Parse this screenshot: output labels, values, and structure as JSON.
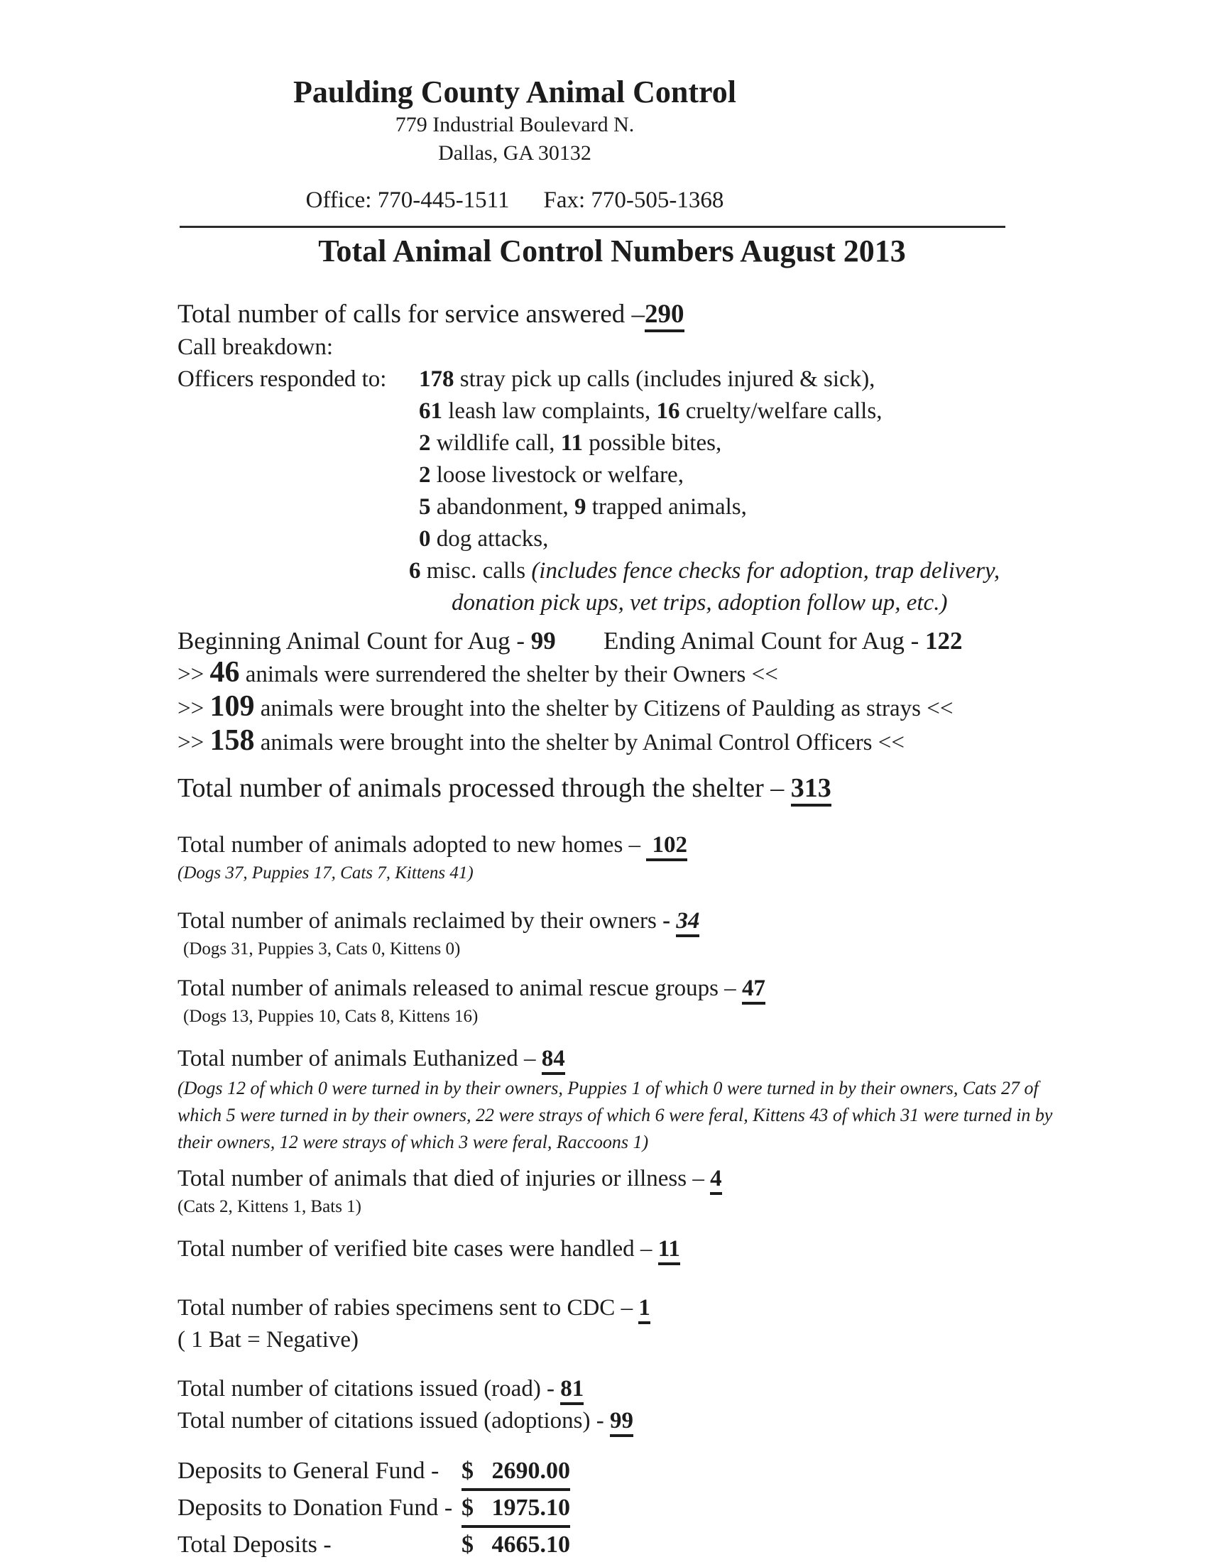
{
  "colors": {
    "text": "#1c1c1c",
    "underline": "#1c1c1c",
    "divider": "#2b2b2b",
    "background": "#ffffff"
  },
  "header": {
    "org_name": "Paulding County Animal Control",
    "address1": "779 Industrial Boulevard N.",
    "address2": "Dallas, GA 30132",
    "office": "Office: 770-445-1511",
    "fax": "Fax: 770-505-1368"
  },
  "doc_title": "Total Animal Control Numbers August 2013",
  "calls": {
    "total": [
      {
        "t": "Total number of calls for service answered –"
      },
      {
        "t": "290",
        "c": "b u"
      }
    ],
    "breakdown_label": "Call breakdown:",
    "officers_label": "Officers responded to:",
    "lines": [
      [
        {
          "t": "178",
          "c": "b"
        },
        {
          "t": " stray pick up calls (includes injured & sick),"
        }
      ],
      [
        {
          "t": "61",
          "c": "b"
        },
        {
          "t": " leash law complaints, "
        },
        {
          "t": "16",
          "c": "b"
        },
        {
          "t": " cruelty/welfare calls,"
        }
      ],
      [
        {
          "t": "2",
          "c": "b"
        },
        {
          "t": " wildlife call, "
        },
        {
          "t": "11",
          "c": "b"
        },
        {
          "t": " possible bites,"
        }
      ],
      [
        {
          "t": "2",
          "c": "b"
        },
        {
          "t": " loose livestock or welfare,"
        }
      ],
      [
        {
          "t": "5",
          "c": "b"
        },
        {
          "t": " abandonment, "
        },
        {
          "t": "9",
          "c": "b"
        },
        {
          "t": " trapped animals,"
        }
      ],
      [
        {
          "t": "0",
          "c": "b"
        },
        {
          "t": " dog attacks,"
        }
      ],
      [
        {
          "t": "6",
          "c": "b"
        },
        {
          "t": " misc. calls "
        },
        {
          "t": "(includes fence checks for adoption, trap delivery,",
          "c": "i"
        }
      ],
      [
        {
          "t": "donation pick ups, vet trips, adoption follow up, etc.)",
          "c": "i"
        }
      ]
    ]
  },
  "counts": {
    "beginning": [
      {
        "t": "Beginning Animal Count for Aug - "
      },
      {
        "t": "99",
        "c": "b"
      }
    ],
    "ending": [
      {
        "t": "Ending Animal Count for Aug - "
      },
      {
        "t": "122",
        "c": "b"
      }
    ]
  },
  "intake": [
    [
      {
        "t": ">> "
      },
      {
        "t": "46",
        "c": "b bignum"
      },
      {
        "t": " animals were surrendered the shelter by their Owners <<"
      }
    ],
    [
      {
        "t": ">> "
      },
      {
        "t": "109",
        "c": "b bignum"
      },
      {
        "t": " animals were brought into the shelter by Citizens of Paulding as strays <<"
      }
    ],
    [
      {
        "t": ">> "
      },
      {
        "t": "158",
        "c": "b bignum"
      },
      {
        "t": " animals were brought into the shelter by Animal Control Officers <<"
      }
    ]
  ],
  "processed": [
    {
      "t": "Total number of animals processed through the shelter – "
    },
    {
      "t": "313",
      "c": "b u"
    }
  ],
  "outcomes": {
    "adopted": [
      {
        "t": "Total number of animals adopted to new homes – "
      },
      {
        "t": " 102",
        "c": "b u"
      }
    ],
    "adopted_detail": "(Dogs 37, Puppies 17, Cats 7, Kittens 41)",
    "reclaimed": [
      {
        "t": "Total number of animals reclaimed by their owners "
      },
      {
        "t": "- ",
        "c": "b"
      },
      {
        "t": "34",
        "c": "b i u"
      }
    ],
    "reclaimed_detail": "(Dogs 31, Puppies 3, Cats 0, Kittens 0)",
    "released": [
      {
        "t": "Total number of animals released to animal rescue groups – "
      },
      {
        "t": "47",
        "c": "b u"
      }
    ],
    "released_detail": "(Dogs 13, Puppies 10, Cats 8, Kittens 16)",
    "euthanized": [
      {
        "t": "Total number of animals Euthanized – "
      },
      {
        "t": "84",
        "c": "b u"
      }
    ],
    "euthanized_detail": "(Dogs 12 of which 0 were turned in by their owners, Puppies 1  of which 0 were turned in by their owners, Cats 27 of which 5 were turned in by their owners, 22 were strays of which 6 were feral, Kittens 43  of which 31 were turned in by their owners,  12 were strays of which 3 were feral, Raccoons 1)",
    "died": [
      {
        "t": "Total number of animals that died of injuries or illness – "
      },
      {
        "t": "4",
        "c": "b u"
      }
    ],
    "died_detail": "(Cats 2, Kittens 1, Bats 1)",
    "bites": [
      {
        "t": "Total number of verified bite cases were handled – "
      },
      {
        "t": "11",
        "c": "b u"
      }
    ],
    "rabies": [
      {
        "t": "Total number of rabies specimens sent to CDC – "
      },
      {
        "t": "1",
        "c": "b u"
      }
    ],
    "rabies_detail": "( 1 Bat = Negative)"
  },
  "citations": {
    "road": [
      {
        "t": "Total number of citations issued (road) - "
      },
      {
        "t": "81",
        "c": "b u"
      }
    ],
    "adoptions": [
      {
        "t": "Total number of citations issued (adoptions) - "
      },
      {
        "t": "99",
        "c": "b u"
      }
    ]
  },
  "deposits": {
    "rows": [
      {
        "label": "Deposits to General Fund -",
        "amount": "$   2690.00"
      },
      {
        "label": "Deposits to Donation Fund -",
        "amount": "$   1975.10"
      },
      {
        "label": "Total Deposits -",
        "amount": "$   4665.10"
      }
    ]
  }
}
